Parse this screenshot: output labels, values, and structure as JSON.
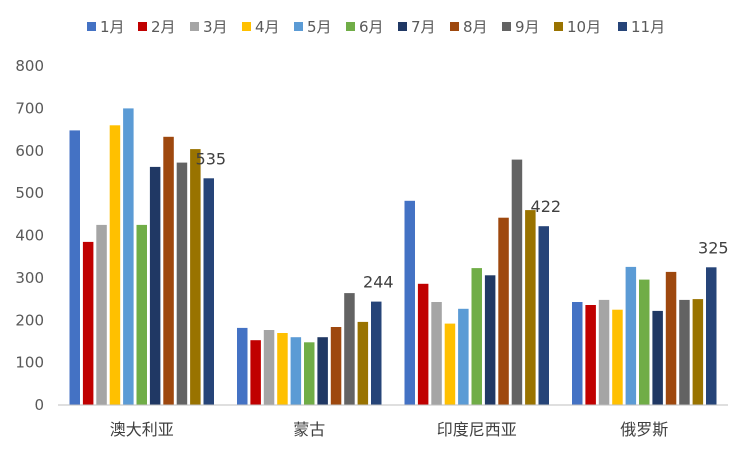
{
  "chart_data": {
    "type": "bar",
    "categories": [
      "澳大利亚",
      "蒙古",
      "印度尼西亚",
      "俄罗斯"
    ],
    "ylim": [
      0,
      800
    ],
    "yticks": [
      0,
      100,
      200,
      300,
      400,
      500,
      600,
      700,
      800
    ],
    "grid": false,
    "legend_position": "top",
    "series": [
      {
        "name": "1月",
        "color": "#4472C4",
        "values": [
          648,
          182,
          482,
          243
        ]
      },
      {
        "name": "2月",
        "color": "#C00000",
        "values": [
          385,
          153,
          286,
          236
        ]
      },
      {
        "name": "3月",
        "color": "#A5A5A5",
        "values": [
          425,
          177,
          243,
          248
        ]
      },
      {
        "name": "4月",
        "color": "#FFC000",
        "values": [
          660,
          170,
          192,
          225
        ]
      },
      {
        "name": "5月",
        "color": "#5B9BD5",
        "values": [
          700,
          160,
          227,
          326
        ]
      },
      {
        "name": "6月",
        "color": "#70AD47",
        "values": [
          425,
          148,
          323,
          296
        ]
      },
      {
        "name": "7月",
        "color": "#203864",
        "values": [
          562,
          160,
          306,
          222
        ]
      },
      {
        "name": "8月",
        "color": "#9E480E",
        "values": [
          633,
          184,
          442,
          314
        ]
      },
      {
        "name": "9月",
        "color": "#636363",
        "values": [
          572,
          264,
          579,
          248
        ]
      },
      {
        "name": "10月",
        "color": "#997300",
        "values": [
          604,
          196,
          460,
          250
        ]
      },
      {
        "name": "11月",
        "color": "#264478",
        "values": [
          535,
          244,
          422,
          325
        ]
      }
    ],
    "data_labels": {
      "series_index": 10,
      "values": [
        "535",
        "244",
        "422",
        "325"
      ]
    }
  }
}
